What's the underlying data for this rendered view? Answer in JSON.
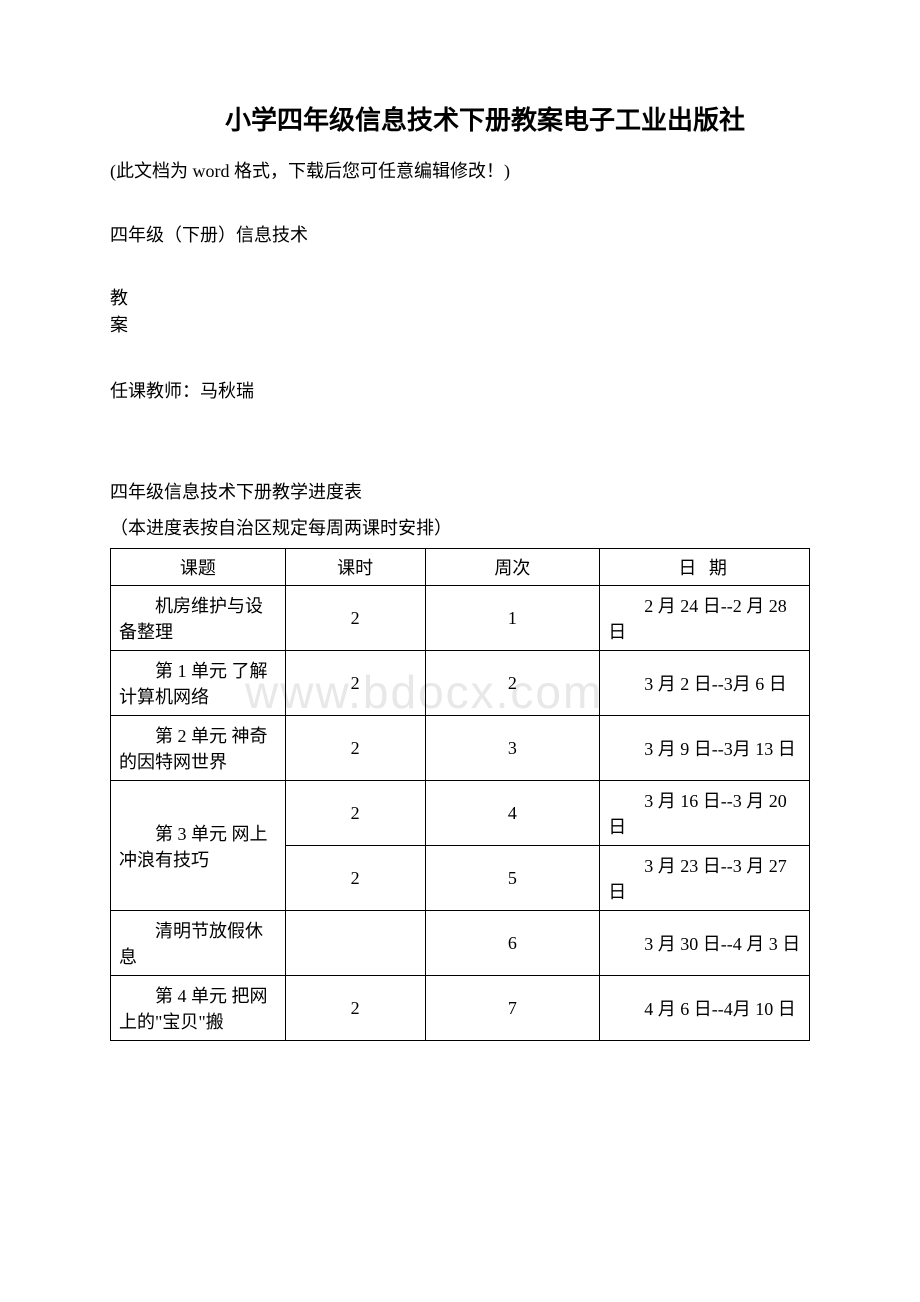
{
  "title": "小学四年级信息技术下册教案电子工业出版社",
  "note": "(此文档为 word 格式，下载后您可任意编辑修改！)",
  "subtitle": "四年级（下册）信息技术",
  "char1": "教",
  "char2": "案",
  "teacher": "任课教师：马秋瑞",
  "schedule_title": "四年级信息技术下册教学进度表",
  "schedule_note": "（本进度表按自治区规定每周两课时安排）",
  "watermark": "www.bdocx.com",
  "table": {
    "headers": {
      "topic": "课题",
      "hours": "课时",
      "week": "周次",
      "date": "日 期"
    },
    "rows": [
      {
        "topic": "机房维护与设备整理",
        "hours": "2",
        "week": "1",
        "date": "2 月 24 日--2 月 28 日"
      },
      {
        "topic": "第 1 单元 了解计算机网络",
        "hours": "2",
        "week": "2",
        "date": "3 月 2 日--3月 6 日"
      },
      {
        "topic": "第 2 单元 神奇的因特网世界",
        "hours": "2",
        "week": "3",
        "date": "3 月 9 日--3月 13 日"
      },
      {
        "topic": "第 3 单元 网上冲浪有技巧",
        "hours": "2",
        "week": "4",
        "date": "3 月 16 日--3 月 20 日",
        "rowspan": 2
      },
      {
        "topic": "",
        "hours": "2",
        "week": "5",
        "date": "3 月 23 日--3 月 27 日"
      },
      {
        "topic": "清明节放假休息",
        "hours": "",
        "week": "6",
        "date": "3 月 30 日--4 月 3 日"
      },
      {
        "topic": "第 4 单元 把网上的\"宝贝\"搬",
        "hours": "2",
        "week": "7",
        "date": "4 月 6 日--4月 10 日"
      }
    ]
  }
}
